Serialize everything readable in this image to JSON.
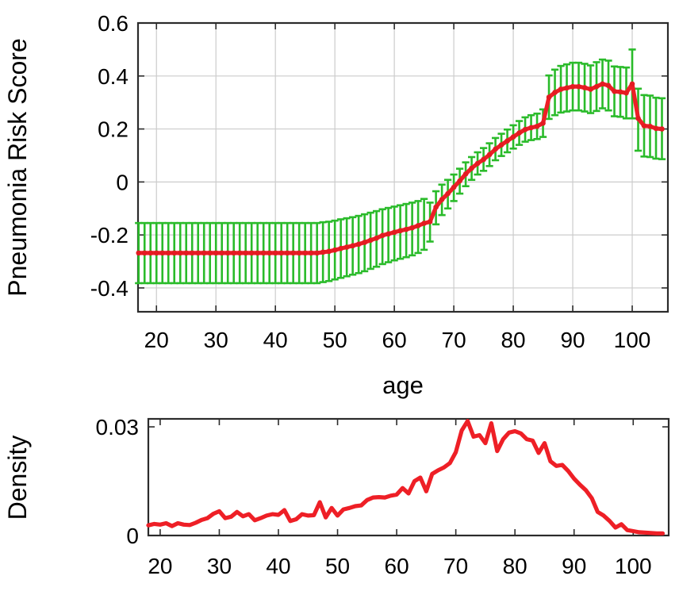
{
  "figure": {
    "background": "#ffffff",
    "top_chart": {
      "ylabel": "Pneumonia Risk Score",
      "xlabel": "age",
      "x_tick_labels": [
        "20",
        "30",
        "40",
        "50",
        "60",
        "70",
        "80",
        "90",
        "100"
      ],
      "y_tick_labels": [
        "0.6",
        "0.4",
        "0.2",
        "0",
        "-0.2",
        "-0.4"
      ]
    },
    "bottom_chart": {
      "ylabel": "Density",
      "x_tick_labels": [
        "20",
        "30",
        "40",
        "50",
        "60",
        "70",
        "80",
        "90",
        "100"
      ],
      "y_tick_labels": [
        "0.03",
        "0"
      ]
    }
  },
  "colors": {
    "line_red": "#ee1f26",
    "dot_red": "#e31b22",
    "errorbar_green": "#2abb2a",
    "grid": "#cccccc",
    "axis": "#2b2b2b",
    "text": "#000000"
  },
  "chart_data": [
    {
      "type": "line",
      "title": "",
      "xlabel": "age",
      "ylabel": "Pneumonia Risk Score",
      "xlim": [
        16.9,
        106.0
      ],
      "ylim": [
        -0.49,
        0.6
      ],
      "x_ticks": [
        20,
        30,
        40,
        50,
        60,
        70,
        80,
        90,
        100
      ],
      "y_ticks": [
        0.6,
        0.4,
        0.2,
        0,
        -0.2,
        -0.4
      ],
      "grid": true,
      "legend": "none",
      "marker": "red dot at each age with green error bar",
      "x": [
        17,
        18,
        19,
        20,
        21,
        22,
        23,
        24,
        25,
        26,
        27,
        28,
        29,
        30,
        31,
        32,
        33,
        34,
        35,
        36,
        37,
        38,
        39,
        40,
        41,
        42,
        43,
        44,
        45,
        46,
        47,
        48,
        49,
        50,
        51,
        52,
        53,
        54,
        55,
        56,
        57,
        58,
        59,
        60,
        61,
        62,
        63,
        64,
        65,
        66,
        67,
        68,
        69,
        70,
        71,
        72,
        73,
        74,
        75,
        76,
        77,
        78,
        79,
        80,
        81,
        82,
        83,
        84,
        85,
        86,
        87,
        88,
        89,
        90,
        91,
        92,
        93,
        94,
        95,
        96,
        97,
        98,
        99,
        100,
        101,
        102,
        103,
        104,
        105
      ],
      "series": [
        {
          "name": "risk_score_mean",
          "values": [
            -0.268,
            -0.268,
            -0.268,
            -0.268,
            -0.268,
            -0.268,
            -0.268,
            -0.268,
            -0.268,
            -0.268,
            -0.268,
            -0.268,
            -0.268,
            -0.268,
            -0.268,
            -0.268,
            -0.268,
            -0.268,
            -0.268,
            -0.268,
            -0.268,
            -0.268,
            -0.268,
            -0.268,
            -0.268,
            -0.268,
            -0.268,
            -0.268,
            -0.268,
            -0.268,
            -0.268,
            -0.265,
            -0.262,
            -0.257,
            -0.251,
            -0.246,
            -0.241,
            -0.235,
            -0.228,
            -0.22,
            -0.212,
            -0.202,
            -0.196,
            -0.19,
            -0.184,
            -0.179,
            -0.173,
            -0.165,
            -0.156,
            -0.15,
            -0.095,
            -0.066,
            -0.044,
            -0.02,
            0.004,
            0.03,
            0.052,
            0.07,
            0.085,
            0.103,
            0.124,
            0.14,
            0.155,
            0.17,
            0.185,
            0.198,
            0.205,
            0.21,
            0.222,
            0.32,
            0.338,
            0.35,
            0.355,
            0.36,
            0.36,
            0.356,
            0.35,
            0.36,
            0.37,
            0.364,
            0.342,
            0.34,
            0.336,
            0.37,
            0.24,
            0.212,
            0.21,
            0.202,
            0.2
          ]
        },
        {
          "name": "ci_lower",
          "values": [
            -0.382,
            -0.382,
            -0.382,
            -0.382,
            -0.382,
            -0.382,
            -0.382,
            -0.382,
            -0.382,
            -0.382,
            -0.382,
            -0.382,
            -0.382,
            -0.382,
            -0.382,
            -0.382,
            -0.382,
            -0.382,
            -0.382,
            -0.382,
            -0.382,
            -0.382,
            -0.382,
            -0.382,
            -0.382,
            -0.382,
            -0.382,
            -0.382,
            -0.382,
            -0.382,
            -0.382,
            -0.378,
            -0.374,
            -0.368,
            -0.362,
            -0.356,
            -0.35,
            -0.344,
            -0.337,
            -0.328,
            -0.32,
            -0.31,
            -0.303,
            -0.296,
            -0.29,
            -0.284,
            -0.277,
            -0.268,
            -0.256,
            -0.225,
            -0.16,
            -0.125,
            -0.1,
            -0.072,
            -0.044,
            -0.016,
            0.008,
            0.028,
            0.042,
            0.06,
            0.082,
            0.098,
            0.112,
            0.126,
            0.14,
            0.152,
            0.158,
            0.162,
            0.17,
            0.238,
            0.252,
            0.262,
            0.266,
            0.27,
            0.27,
            0.266,
            0.26,
            0.268,
            0.278,
            0.27,
            0.248,
            0.246,
            0.24,
            0.24,
            0.118,
            0.096,
            0.094,
            0.088,
            0.086
          ]
        },
        {
          "name": "ci_upper",
          "values": [
            -0.155,
            -0.155,
            -0.155,
            -0.155,
            -0.155,
            -0.155,
            -0.155,
            -0.155,
            -0.155,
            -0.155,
            -0.155,
            -0.155,
            -0.155,
            -0.155,
            -0.155,
            -0.155,
            -0.155,
            -0.155,
            -0.155,
            -0.155,
            -0.155,
            -0.155,
            -0.155,
            -0.155,
            -0.155,
            -0.155,
            -0.155,
            -0.155,
            -0.155,
            -0.155,
            -0.155,
            -0.152,
            -0.15,
            -0.146,
            -0.141,
            -0.137,
            -0.133,
            -0.128,
            -0.122,
            -0.116,
            -0.11,
            -0.103,
            -0.098,
            -0.093,
            -0.088,
            -0.083,
            -0.078,
            -0.072,
            -0.064,
            -0.078,
            -0.035,
            -0.01,
            0.008,
            0.028,
            0.05,
            0.074,
            0.094,
            0.112,
            0.128,
            0.146,
            0.166,
            0.182,
            0.198,
            0.214,
            0.23,
            0.244,
            0.252,
            0.258,
            0.274,
            0.402,
            0.424,
            0.438,
            0.444,
            0.45,
            0.45,
            0.446,
            0.44,
            0.452,
            0.462,
            0.458,
            0.436,
            0.434,
            0.432,
            0.5,
            0.352,
            0.328,
            0.326,
            0.318,
            0.316
          ]
        }
      ]
    },
    {
      "type": "line",
      "title": "",
      "xlabel": "",
      "ylabel": "Density",
      "xlim": [
        18,
        106
      ],
      "ylim": [
        0,
        0.0322
      ],
      "x_ticks": [
        20,
        30,
        40,
        50,
        60,
        70,
        80,
        90,
        100
      ],
      "y_ticks": [
        0.03,
        0
      ],
      "grid": false,
      "legend": "none",
      "x": [
        18,
        19,
        20,
        21,
        22,
        23,
        24,
        25,
        26,
        27,
        28,
        29,
        30,
        31,
        32,
        33,
        34,
        35,
        36,
        37,
        38,
        39,
        40,
        41,
        42,
        43,
        44,
        45,
        46,
        47,
        48,
        49,
        50,
        51,
        52,
        53,
        54,
        55,
        56,
        57,
        58,
        59,
        60,
        61,
        62,
        63,
        64,
        65,
        66,
        67,
        68,
        69,
        70,
        71,
        72,
        73,
        74,
        75,
        76,
        77,
        78,
        79,
        80,
        81,
        82,
        83,
        84,
        85,
        86,
        87,
        88,
        89,
        90,
        91,
        92,
        93,
        94,
        95,
        96,
        97,
        98,
        99,
        100,
        101,
        102,
        103,
        104,
        105
      ],
      "series": [
        {
          "name": "age_density",
          "values": [
            0.0028,
            0.0032,
            0.003,
            0.0034,
            0.0026,
            0.0034,
            0.003,
            0.0029,
            0.0035,
            0.0043,
            0.0048,
            0.006,
            0.0067,
            0.0048,
            0.0052,
            0.0065,
            0.0053,
            0.0059,
            0.0042,
            0.0048,
            0.0055,
            0.0059,
            0.0057,
            0.007,
            0.004,
            0.0045,
            0.0059,
            0.0055,
            0.0056,
            0.0092,
            0.005,
            0.0076,
            0.0055,
            0.0072,
            0.0076,
            0.0081,
            0.0083,
            0.0098,
            0.0105,
            0.0106,
            0.0105,
            0.011,
            0.0113,
            0.0131,
            0.0116,
            0.015,
            0.016,
            0.0122,
            0.017,
            0.018,
            0.0188,
            0.02,
            0.023,
            0.029,
            0.0316,
            0.0273,
            0.0277,
            0.0255,
            0.031,
            0.0233,
            0.0266,
            0.0284,
            0.0288,
            0.0282,
            0.0266,
            0.0262,
            0.0228,
            0.0255,
            0.0205,
            0.0192,
            0.0195,
            0.0178,
            0.0157,
            0.014,
            0.0125,
            0.0103,
            0.0065,
            0.0055,
            0.004,
            0.0022,
            0.0031,
            0.0015,
            0.0012,
            0.0009,
            0.0008,
            0.0007,
            0.0006,
            0.0006
          ]
        }
      ]
    }
  ]
}
